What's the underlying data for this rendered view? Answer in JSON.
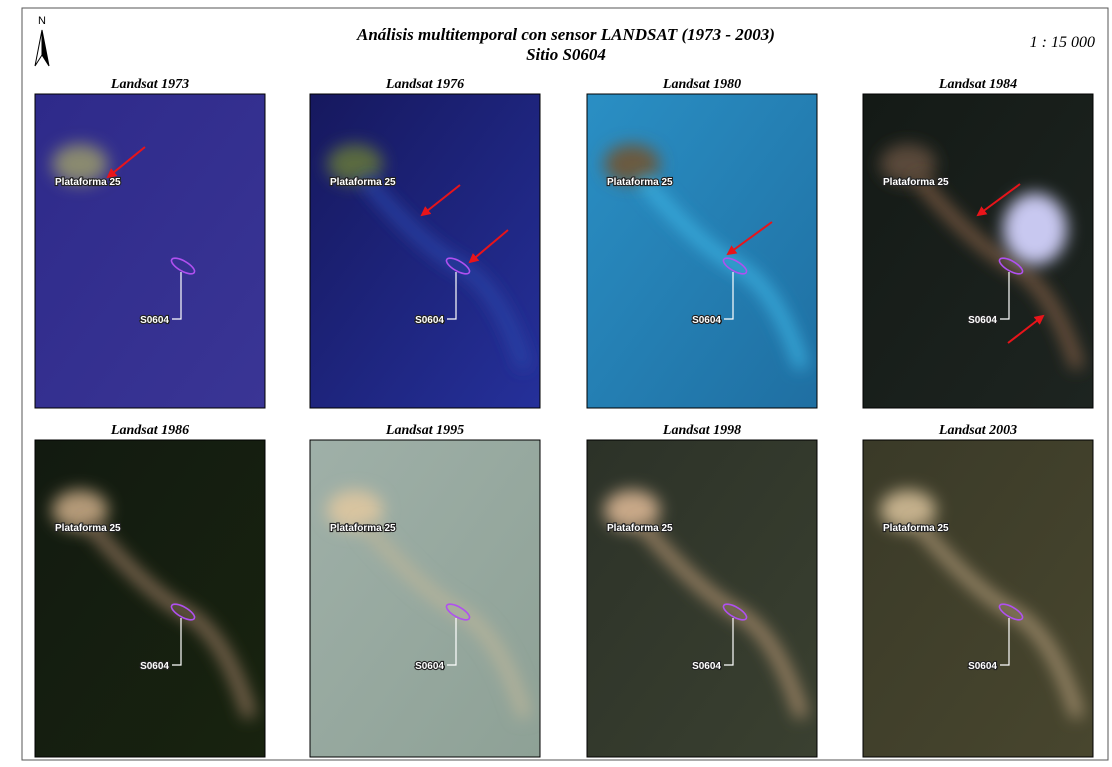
{
  "header": {
    "north": "N",
    "title": "Análisis multitemporal con sensor LANDSAT (1973 - 2003)",
    "subtitle": "Sitio S0604",
    "scale": "1 : 15 000"
  },
  "panels": [
    {
      "title": "Landsat 1973",
      "platform_label": "Plataforma 25",
      "site_label": "S0604"
    },
    {
      "title": "Landsat 1976",
      "platform_label": "Plataforma 25",
      "site_label": "S0604"
    },
    {
      "title": "Landsat 1980",
      "platform_label": "Plataforma 25",
      "site_label": "S0604"
    },
    {
      "title": "Landsat 1984",
      "platform_label": "Plataforma 25",
      "site_label": "S0604"
    },
    {
      "title": "Landsat 1986",
      "platform_label": "Plataforma 25",
      "site_label": "S0604"
    },
    {
      "title": "Landsat 1995",
      "platform_label": "Plataforma 25",
      "site_label": "S0604"
    },
    {
      "title": "Landsat 1998",
      "platform_label": "Plataforma 25",
      "site_label": "S0604"
    },
    {
      "title": "Landsat 2003",
      "platform_label": "Plataforma 25",
      "site_label": "S0604"
    }
  ]
}
